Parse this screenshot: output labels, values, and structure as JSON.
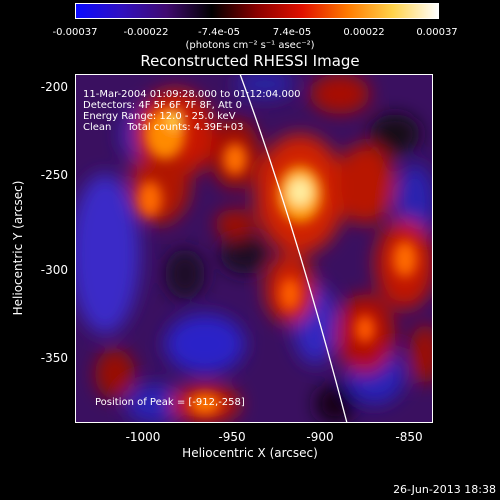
{
  "colorbar": {
    "ticks": [
      "-0.00037",
      "-0.00022",
      "-7.4e-05",
      "7.4e-05",
      "0.00022",
      "0.00037"
    ],
    "units": "(photons cm⁻² s⁻¹ asec⁻²)",
    "colors": [
      "#0a0aff",
      "#3010c0",
      "#400a70",
      "#000000",
      "#8a0000",
      "#e01000",
      "#ff7a00",
      "#ffd24a",
      "#ffffff"
    ]
  },
  "title": "Reconstructed RHESSI Image",
  "annotations": {
    "line1": "11-Mar-2004 01:09:28.000 to 01:12:04.000",
    "line2": "Detectors: 4F 5F 6F 7F 8F, Att 0",
    "line3": "Energy Range: 12.0 - 25.0 keV",
    "line4": "Clean     Total counts: 4.39E+03",
    "peak": "Position of Peak = [-912,-258]"
  },
  "axes": {
    "xlabel": "Heliocentric X (arcsec)",
    "ylabel": "Heliocentric Y (arcsec)",
    "xticks": [
      "-1000",
      "-950",
      "-900",
      "-850"
    ],
    "yticks": [
      "-200",
      "-250",
      "-300",
      "-350"
    ]
  },
  "datestamp": "26-Jun-2013 18:38"
}
